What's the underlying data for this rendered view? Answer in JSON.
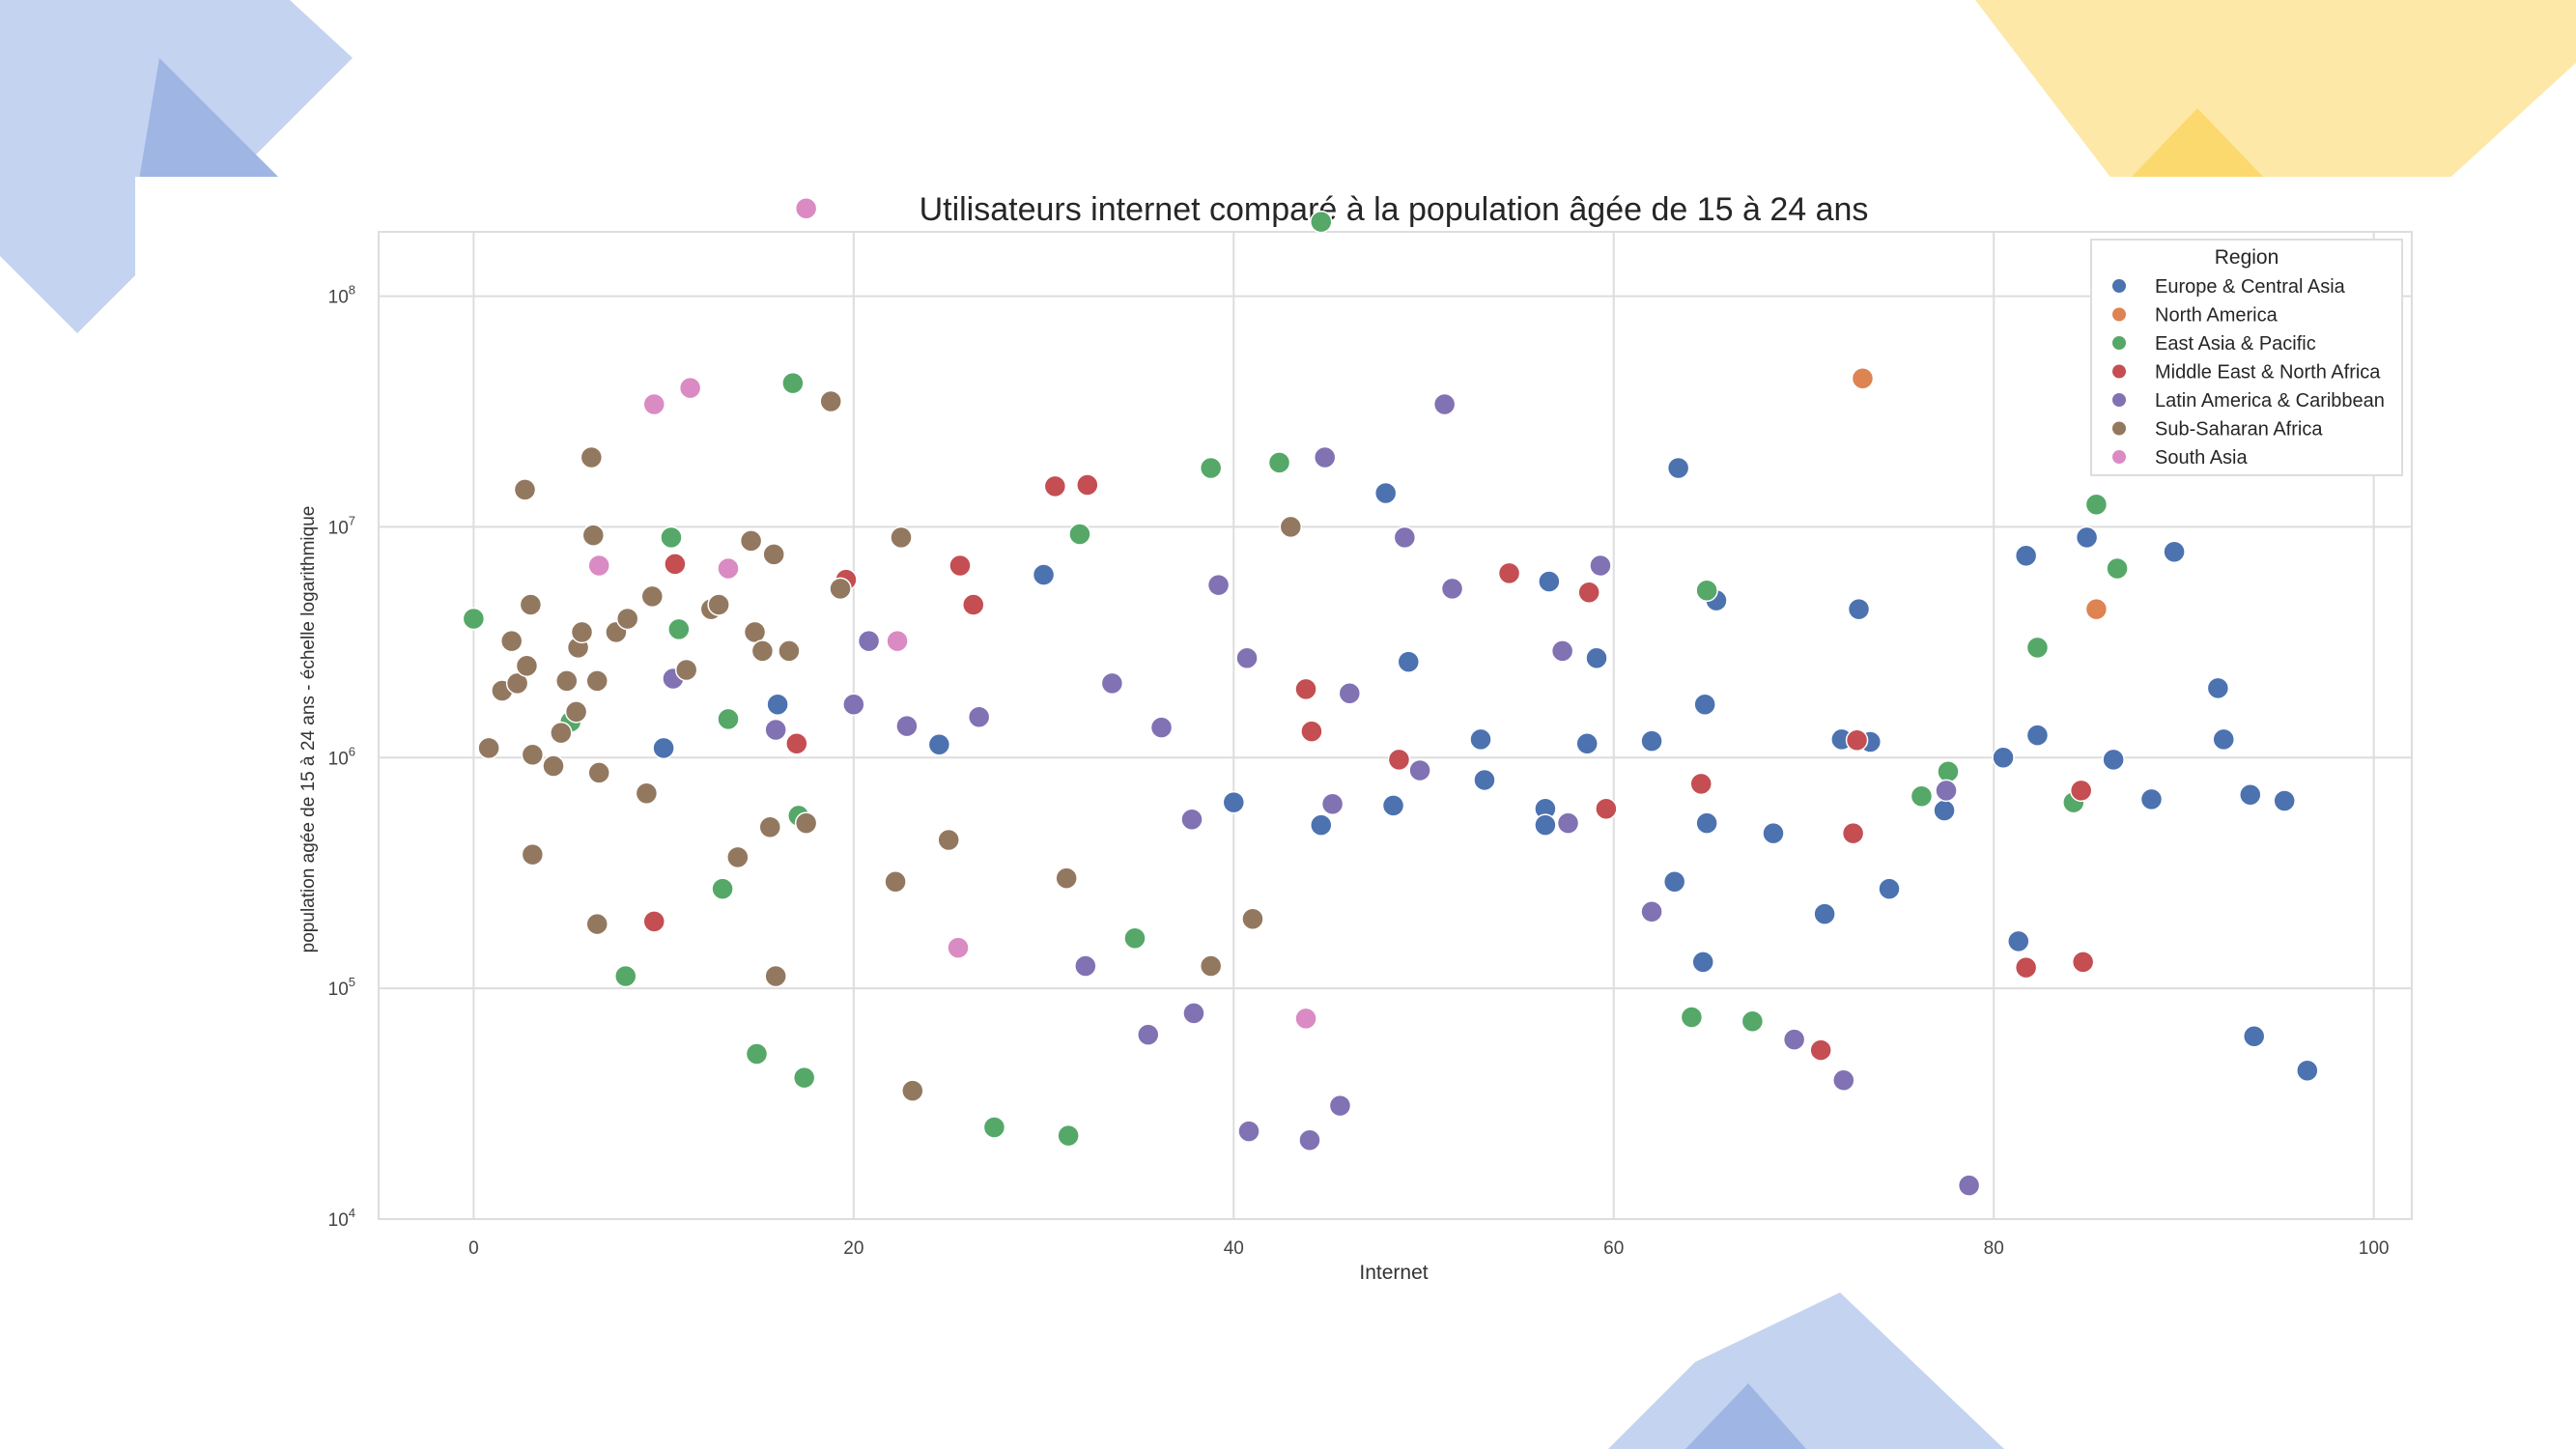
{
  "chart_data": {
    "type": "scatter",
    "title": "Utilisateurs internet comparé à la population âgée de 15 à 24 ans",
    "xlabel": "Internet",
    "ylabel": "population agée de 15 à 24 ans - échelle logarithmique",
    "x_ticks": [
      "0",
      "20",
      "40",
      "60",
      "80",
      "100"
    ],
    "y_ticks": [
      "10",
      "10",
      "10",
      "10"
    ],
    "y_tick_exponents": [
      "4",
      "5",
      "6",
      "7"
    ],
    "y_top_tick_label": "10",
    "y_top_tick_exponent": "8",
    "xlim": [
      -5,
      102
    ],
    "y_scale": "log",
    "ylim": [
      10000,
      190000000
    ],
    "grid": true,
    "legend_position": "top-right",
    "legend_title": "Region",
    "series": [
      {
        "name": "Europe & Central Asia",
        "color": "#4c72b0",
        "points": [
          [
            30,
            6200000
          ],
          [
            24.5,
            1140000
          ],
          [
            16,
            1700000
          ],
          [
            10,
            1100000
          ],
          [
            40,
            640000
          ],
          [
            44.6,
            510000
          ],
          [
            48.4,
            620000
          ],
          [
            48,
            14000000
          ],
          [
            49.2,
            2600000
          ],
          [
            53,
            1200000
          ],
          [
            53.2,
            800000
          ],
          [
            56.4,
            600000
          ],
          [
            56.4,
            510000
          ],
          [
            56.6,
            5800000
          ],
          [
            58.6,
            1150000
          ],
          [
            59.1,
            2700000
          ],
          [
            62,
            1180000
          ],
          [
            63.2,
            290000
          ],
          [
            63.4,
            18000000
          ],
          [
            64.7,
            130000
          ],
          [
            64.8,
            1700000
          ],
          [
            64.9,
            520000
          ],
          [
            65.4,
            4800000
          ],
          [
            68.4,
            470000
          ],
          [
            71.1,
            210000
          ],
          [
            72,
            1200000
          ],
          [
            72.9,
            4400000
          ],
          [
            73.5,
            1170000
          ],
          [
            74.5,
            270000
          ],
          [
            77.4,
            590000
          ],
          [
            77.5,
            720000
          ],
          [
            80.5,
            1000000
          ],
          [
            81.3,
            160000
          ],
          [
            81.7,
            7500000
          ],
          [
            82.3,
            1250000
          ],
          [
            84.9,
            9000000
          ],
          [
            86.3,
            980000
          ],
          [
            88.3,
            660000
          ],
          [
            89.5,
            7800000
          ],
          [
            91.8,
            2000000
          ],
          [
            92.1,
            1200000
          ],
          [
            93.5,
            690000
          ],
          [
            93.7,
            62000
          ],
          [
            95.3,
            650000
          ],
          [
            96.5,
            44000
          ]
        ]
      },
      {
        "name": "North America",
        "color": "#dd8452",
        "points": [
          [
            73.1,
            44000000
          ],
          [
            85.4,
            4400000
          ]
        ]
      },
      {
        "name": "East Asia & Pacific",
        "color": "#55a868",
        "points": [
          [
            0,
            4000000
          ],
          [
            5.1,
            1430000
          ],
          [
            8,
            113000
          ],
          [
            10.4,
            9000000
          ],
          [
            10.8,
            3600000
          ],
          [
            13.1,
            270000
          ],
          [
            13.4,
            1470000
          ],
          [
            14.9,
            52000
          ],
          [
            16.8,
            42000000
          ],
          [
            17.1,
            560000
          ],
          [
            17.4,
            41000
          ],
          [
            27.4,
            25000
          ],
          [
            31.3,
            23000
          ],
          [
            31.9,
            9300000
          ],
          [
            34.8,
            165000
          ],
          [
            38.8,
            18000000
          ],
          [
            42.4,
            19000000
          ],
          [
            44.6,
            210000000
          ],
          [
            64.1,
            75000
          ],
          [
            64.9,
            5300000
          ],
          [
            67.3,
            72000
          ],
          [
            76.2,
            680000
          ],
          [
            77.6,
            870000
          ],
          [
            82.3,
            3000000
          ],
          [
            84.2,
            640000
          ],
          [
            85.4,
            12500000
          ],
          [
            86.5,
            6600000
          ]
        ]
      },
      {
        "name": "Middle East & North Africa",
        "color": "#c44e52",
        "points": [
          [
            9.5,
            195000
          ],
          [
            10.6,
            6900000
          ],
          [
            17,
            1150000
          ],
          [
            19.6,
            5900000
          ],
          [
            25.6,
            6800000
          ],
          [
            26.3,
            4600000
          ],
          [
            30.6,
            15000000
          ],
          [
            32.3,
            15200000
          ],
          [
            43.8,
            1980000
          ],
          [
            44.1,
            1300000
          ],
          [
            48.7,
            980000
          ],
          [
            54.5,
            6300000
          ],
          [
            58.7,
            5200000
          ],
          [
            59.6,
            600000
          ],
          [
            64.6,
            770000
          ],
          [
            70.9,
            54000
          ],
          [
            72.6,
            470000
          ],
          [
            72.8,
            1190000
          ],
          [
            81.7,
            123000
          ],
          [
            84.6,
            720000
          ],
          [
            84.7,
            130000
          ]
        ]
      },
      {
        "name": "Latin America & Caribbean",
        "color": "#8172b3",
        "points": [
          [
            10.5,
            2200000
          ],
          [
            15.9,
            1320000
          ],
          [
            20,
            1700000
          ],
          [
            20.8,
            3200000
          ],
          [
            22.8,
            1370000
          ],
          [
            26.6,
            1500000
          ],
          [
            32.2,
            125000
          ],
          [
            33.6,
            2100000
          ],
          [
            35.5,
            63000
          ],
          [
            36.2,
            1350000
          ],
          [
            37.8,
            540000
          ],
          [
            37.9,
            78000
          ],
          [
            39.2,
            5600000
          ],
          [
            40.7,
            2700000
          ],
          [
            40.8,
            24000
          ],
          [
            44,
            22000
          ],
          [
            44.8,
            20000000
          ],
          [
            45.2,
            630000
          ],
          [
            45.6,
            31000
          ],
          [
            46.1,
            1900000
          ],
          [
            49,
            9000000
          ],
          [
            49.8,
            880000
          ],
          [
            51.1,
            34000000
          ],
          [
            51.5,
            5400000
          ],
          [
            57.3,
            2900000
          ],
          [
            57.6,
            520000
          ],
          [
            59.3,
            6800000
          ],
          [
            62,
            215000
          ],
          [
            69.5,
            60000
          ],
          [
            72.1,
            40000
          ],
          [
            77.5,
            720000
          ],
          [
            78.7,
            14000
          ]
        ]
      },
      {
        "name": "Sub-Saharan Africa",
        "color": "#937860",
        "points": [
          [
            0.8,
            1100000
          ],
          [
            1.5,
            1950000
          ],
          [
            2,
            3200000
          ],
          [
            2.3,
            2100000
          ],
          [
            2.7,
            14500000
          ],
          [
            2.8,
            2500000
          ],
          [
            3,
            4600000
          ],
          [
            3.1,
            1030000
          ],
          [
            3.1,
            380000
          ],
          [
            4.2,
            920000
          ],
          [
            4.6,
            1280000
          ],
          [
            4.9,
            2150000
          ],
          [
            5.4,
            1580000
          ],
          [
            5.5,
            3000000
          ],
          [
            5.7,
            3500000
          ],
          [
            6.2,
            20000000
          ],
          [
            6.3,
            9200000
          ],
          [
            6.5,
            190000
          ],
          [
            6.5,
            2150000
          ],
          [
            6.6,
            860000
          ],
          [
            7.5,
            3500000
          ],
          [
            8.1,
            4000000
          ],
          [
            9.1,
            700000
          ],
          [
            9.4,
            5000000
          ],
          [
            11.2,
            2400000
          ],
          [
            12.5,
            4400000
          ],
          [
            12.9,
            4600000
          ],
          [
            13.9,
            370000
          ],
          [
            14.6,
            8700000
          ],
          [
            14.8,
            3500000
          ],
          [
            15.2,
            2900000
          ],
          [
            15.6,
            500000
          ],
          [
            15.8,
            7600000
          ],
          [
            15.9,
            113000
          ],
          [
            16.6,
            2900000
          ],
          [
            17.5,
            520000
          ],
          [
            18.8,
            35000000
          ],
          [
            19.3,
            5400000
          ],
          [
            22.2,
            290000
          ],
          [
            22.5,
            9000000
          ],
          [
            23.1,
            36000
          ],
          [
            25,
            440000
          ],
          [
            31.2,
            300000
          ],
          [
            38.8,
            125000
          ],
          [
            41,
            200000
          ],
          [
            43,
            10000000
          ]
        ]
      },
      {
        "name": "South Asia",
        "color": "#da8bc3",
        "points": [
          [
            6.6,
            6800000
          ],
          [
            9.5,
            34000000
          ],
          [
            11.4,
            40000000
          ],
          [
            13.4,
            6600000
          ],
          [
            17.5,
            240000000
          ],
          [
            22.3,
            3200000
          ],
          [
            25.5,
            150000
          ],
          [
            43.8,
            74000
          ]
        ]
      }
    ]
  }
}
